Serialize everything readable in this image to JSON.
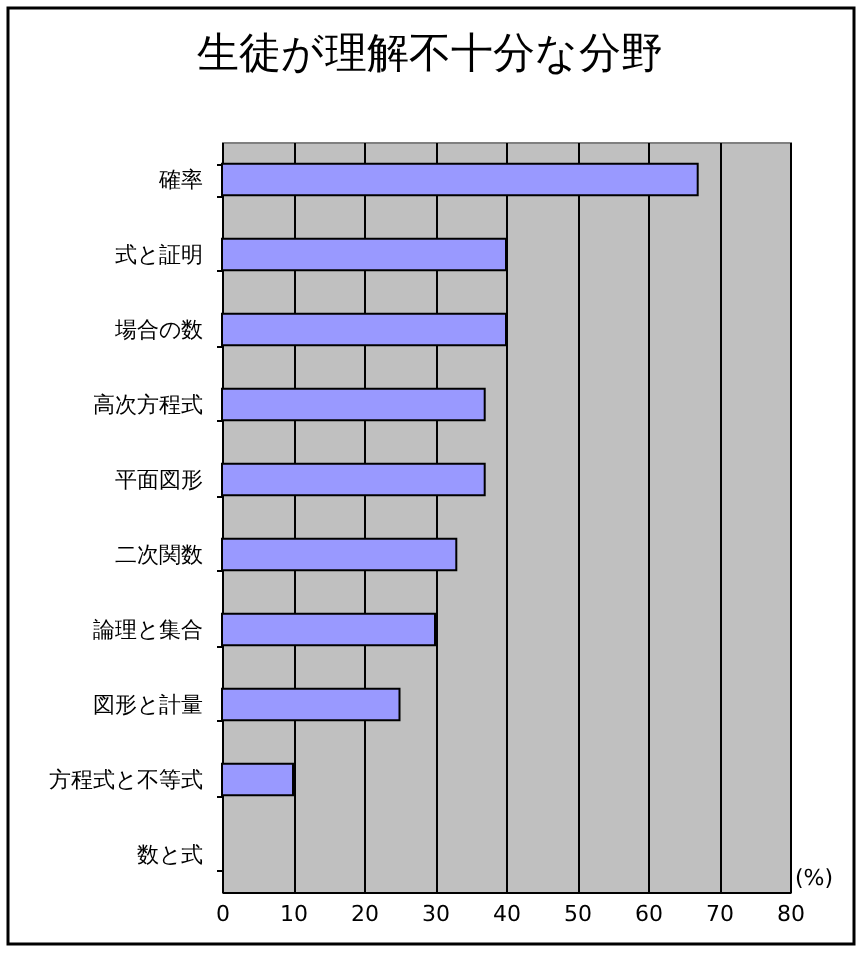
{
  "chart_data": {
    "type": "bar",
    "orientation": "horizontal",
    "title": "生徒が理解不十分な分野",
    "xlabel": "(%)",
    "categories": [
      "確率",
      "式と証明",
      "場合の数",
      "高次方程式",
      "平面図形",
      "二次関数",
      "論理と集合",
      "図形と計量",
      "方程式と不等式",
      "数と式"
    ],
    "values": [
      67,
      40,
      40,
      37,
      37,
      33,
      30,
      25,
      10,
      0
    ],
    "color": "#9999ff",
    "xlim": [
      0,
      80
    ],
    "xticks": [
      0,
      10,
      20,
      30,
      40,
      50,
      60,
      70,
      80
    ],
    "grid": "x"
  }
}
